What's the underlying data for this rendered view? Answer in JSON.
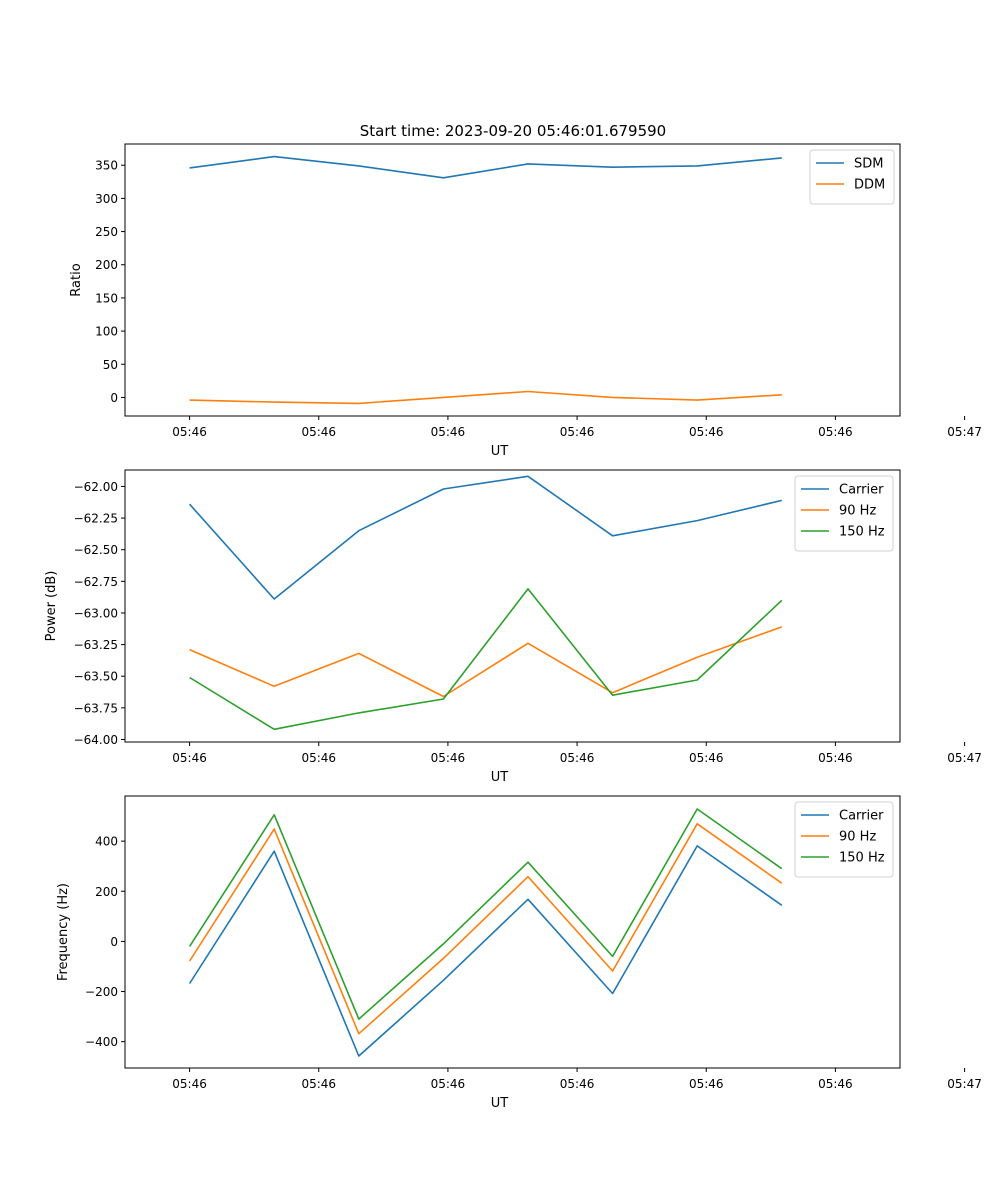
{
  "figure": {
    "title": "Start time: 2023-09-20 05:46:01.679590"
  },
  "chart_data": [
    {
      "type": "line",
      "title": "Start time: 2023-09-20 05:46:01.679590",
      "xlabel": "UT",
      "ylabel": "Ratio",
      "xlim": [
        -0.5,
        5.5
      ],
      "ylim": [
        -28,
        382
      ],
      "x": [
        0,
        0.655,
        1.31,
        1.965,
        2.62,
        3.275,
        3.93,
        4.585
      ],
      "xticks": [
        0,
        1,
        2,
        3,
        4,
        5,
        6
      ],
      "xtick_labels": [
        "05:46",
        "05:46",
        "05:46",
        "05:46",
        "05:46",
        "05:46",
        "05:47"
      ],
      "yticks": [
        0,
        50,
        100,
        150,
        200,
        250,
        300,
        350
      ],
      "ytick_labels": [
        "0",
        "50",
        "100",
        "150",
        "200",
        "250",
        "300",
        "350"
      ],
      "legend_position": "top-right",
      "series": [
        {
          "name": "SDM",
          "color": "#1f77b4",
          "values": [
            346,
            363,
            349,
            331,
            352,
            347,
            349,
            361
          ]
        },
        {
          "name": "DDM",
          "color": "#ff7f0e",
          "values": [
            -4,
            -7,
            -9,
            0,
            9,
            0,
            -4,
            4
          ]
        }
      ]
    },
    {
      "type": "line",
      "title": "",
      "xlabel": "UT",
      "ylabel": "Power (dB)",
      "xlim": [
        -0.5,
        5.5
      ],
      "ylim": [
        -64.02,
        -61.87
      ],
      "x": [
        0,
        0.655,
        1.31,
        1.965,
        2.62,
        3.275,
        3.93,
        4.585
      ],
      "xticks": [
        0,
        1,
        2,
        3,
        4,
        5,
        6
      ],
      "xtick_labels": [
        "05:46",
        "05:46",
        "05:46",
        "05:46",
        "05:46",
        "05:46",
        "05:47"
      ],
      "yticks": [
        -62.0,
        -62.25,
        -62.5,
        -62.75,
        -63.0,
        -63.25,
        -63.5,
        -63.75,
        -64.0
      ],
      "ytick_labels": [
        "−62.00",
        "−62.25",
        "−62.50",
        "−62.75",
        "−63.00",
        "−63.25",
        "−63.50",
        "−63.75",
        "−64.00"
      ],
      "legend_position": "top-right",
      "series": [
        {
          "name": "Carrier",
          "color": "#1f77b4",
          "values": [
            -62.14,
            -62.89,
            -62.35,
            -62.02,
            -61.92,
            -62.39,
            -62.27,
            -62.11
          ]
        },
        {
          "name": "90 Hz",
          "color": "#ff7f0e",
          "values": [
            -63.29,
            -63.58,
            -63.32,
            -63.66,
            -63.24,
            -63.63,
            -63.35,
            -63.11
          ]
        },
        {
          "name": "150 Hz",
          "color": "#2ca02c",
          "values": [
            -63.51,
            -63.92,
            -63.79,
            -63.68,
            -62.81,
            -63.65,
            -63.53,
            -62.9
          ]
        }
      ]
    },
    {
      "type": "line",
      "title": "",
      "xlabel": "UT",
      "ylabel": "Frequency (Hz)",
      "xlim": [
        -0.5,
        5.5
      ],
      "ylim": [
        -505,
        580
      ],
      "x": [
        0,
        0.655,
        1.31,
        1.965,
        2.62,
        3.275,
        3.93,
        4.585
      ],
      "xticks": [
        0,
        1,
        2,
        3,
        4,
        5,
        6
      ],
      "xtick_labels": [
        "05:46",
        "05:46",
        "05:46",
        "05:46",
        "05:46",
        "05:46",
        "05:47"
      ],
      "yticks": [
        -400,
        -200,
        0,
        200,
        400
      ],
      "ytick_labels": [
        "−400",
        "−200",
        "0",
        "200",
        "400"
      ],
      "legend_position": "top-right",
      "series": [
        {
          "name": "Carrier",
          "color": "#1f77b4",
          "values": [
            -168,
            360,
            -457,
            -155,
            168,
            -208,
            381,
            144
          ]
        },
        {
          "name": "90 Hz",
          "color": "#ff7f0e",
          "values": [
            -78,
            448,
            -368,
            -68,
            258,
            -118,
            469,
            232
          ]
        },
        {
          "name": "150 Hz",
          "color": "#2ca02c",
          "values": [
            -20,
            505,
            -310,
            -10,
            316,
            -60,
            528,
            290
          ]
        }
      ]
    }
  ]
}
